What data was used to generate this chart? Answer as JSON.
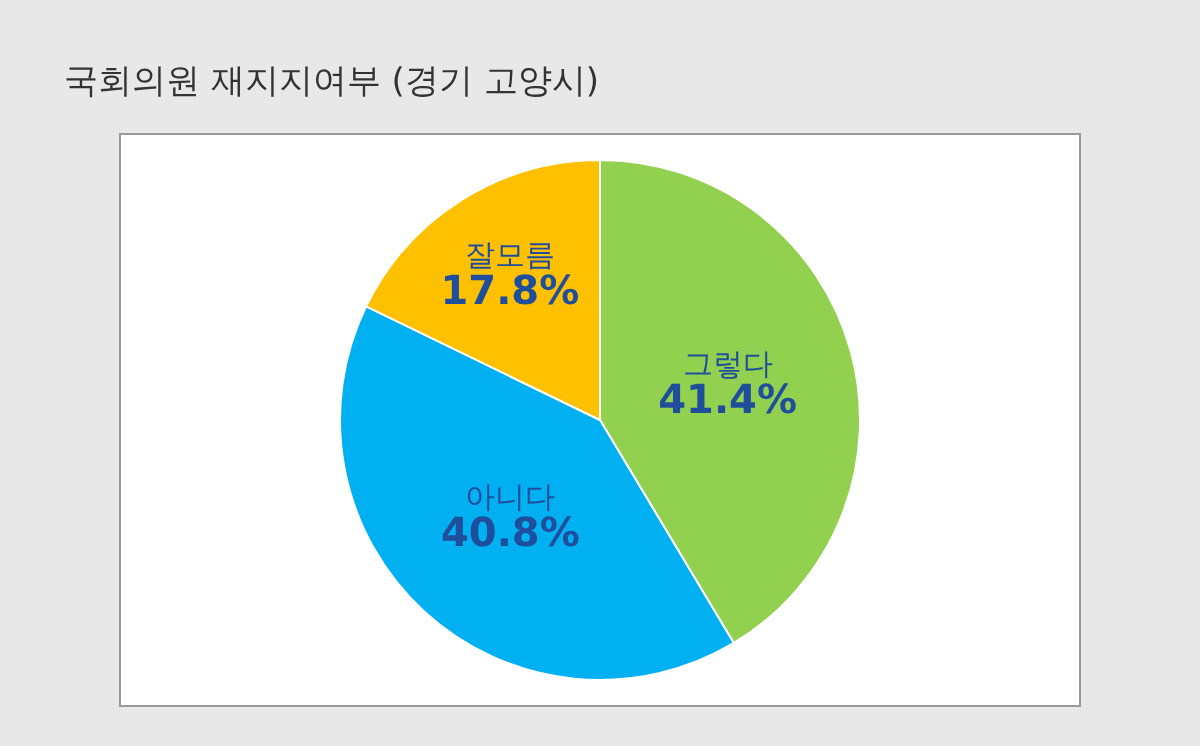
{
  "chart_data": {
    "type": "pie",
    "title": "국회의원 재지지여부 (경기 고양시)",
    "categories": [
      "그렇다",
      "아니다",
      "잘모름"
    ],
    "values": [
      41.4,
      40.8,
      17.8
    ],
    "value_labels": [
      "41.4%",
      "40.8%",
      "17.8%"
    ],
    "colors": [
      "#92d050",
      "#00b0f0",
      "#ffc000"
    ],
    "legend": false
  }
}
